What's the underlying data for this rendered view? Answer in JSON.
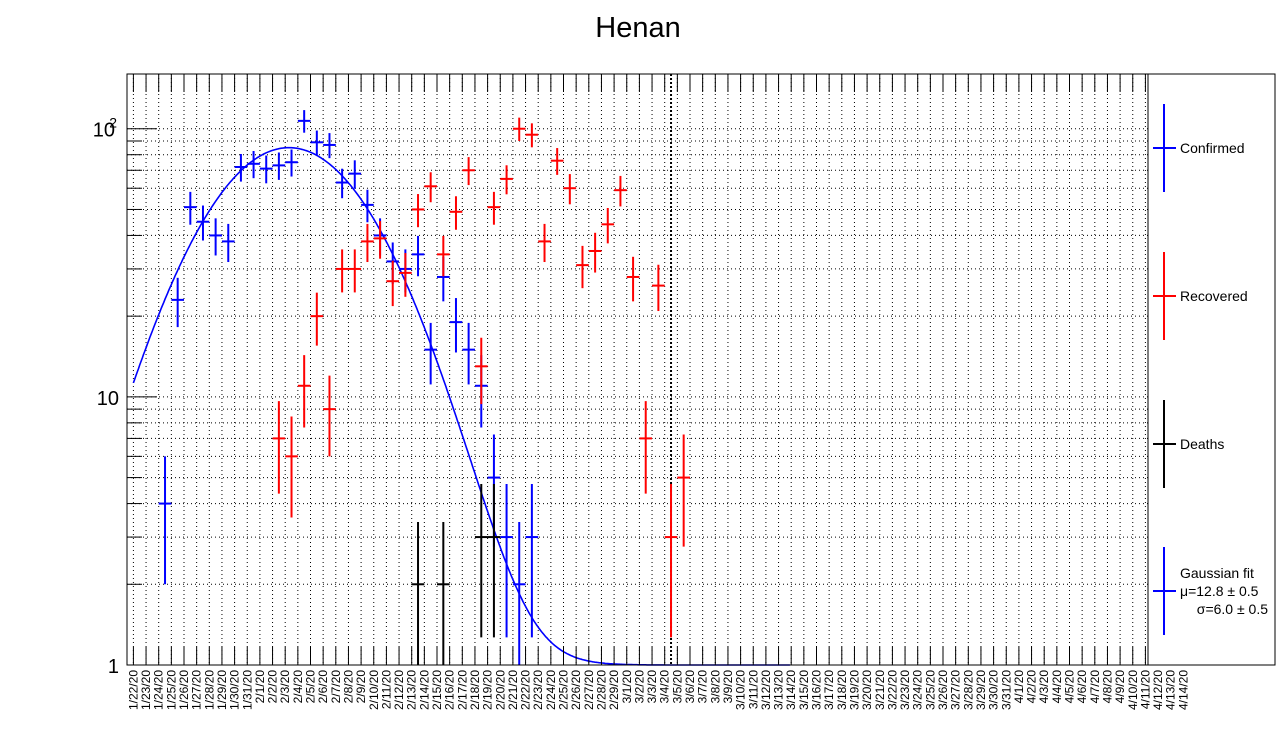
{
  "chart_data": {
    "type": "scatter",
    "title": "Henan",
    "yscale": "log",
    "ylim": [
      1,
      160
    ],
    "yticks": [
      {
        "value": 1,
        "label": "1"
      },
      {
        "value": 10,
        "label": "10"
      },
      {
        "value": 100,
        "label": "10",
        "sup": "2"
      }
    ],
    "grid": true,
    "x": [
      "1/22/20",
      "1/23/20",
      "1/24/20",
      "1/25/20",
      "1/26/20",
      "1/27/20",
      "1/28/20",
      "1/29/20",
      "1/30/20",
      "1/31/20",
      "2/1/20",
      "2/2/20",
      "2/3/20",
      "2/4/20",
      "2/5/20",
      "2/6/20",
      "2/7/20",
      "2/8/20",
      "2/9/20",
      "2/10/20",
      "2/11/20",
      "2/12/20",
      "2/13/20",
      "2/14/20",
      "2/15/20",
      "2/16/20",
      "2/17/20",
      "2/18/20",
      "2/19/20",
      "2/20/20",
      "2/21/20",
      "2/22/20",
      "2/23/20",
      "2/24/20",
      "2/25/20",
      "2/26/20",
      "2/27/20",
      "2/28/20",
      "2/29/20",
      "3/1/20",
      "3/2/20",
      "3/3/20",
      "3/4/20",
      "3/5/20",
      "3/6/20",
      "3/7/20",
      "3/8/20",
      "3/9/20",
      "3/10/20",
      "3/11/20",
      "3/12/20",
      "3/13/20",
      "3/14/20",
      "3/15/20",
      "3/16/20",
      "3/17/20",
      "3/18/20",
      "3/19/20",
      "3/20/20",
      "3/21/20",
      "3/22/20",
      "3/23/20",
      "3/24/20",
      "3/25/20",
      "3/26/20",
      "3/27/20",
      "3/28/20",
      "3/29/20",
      "3/30/20",
      "3/31/20",
      "4/1/20",
      "4/2/20",
      "4/3/20",
      "4/4/20",
      "4/5/20",
      "4/6/20",
      "4/7/20",
      "4/8/20",
      "4/9/20",
      "4/10/20",
      "4/11/20",
      "4/12/20",
      "4/13/20",
      "4/14/20"
    ],
    "vertical_marker": "3/4/20",
    "series": [
      {
        "name": "Confirmed",
        "color": "#0000ff",
        "marker": "errorbar",
        "points": [
          [
            2,
            4
          ],
          [
            3,
            23
          ],
          [
            4,
            51
          ],
          [
            5,
            45
          ],
          [
            6,
            40
          ],
          [
            7,
            38
          ],
          [
            8,
            72
          ],
          [
            9,
            74
          ],
          [
            10,
            71
          ],
          [
            11,
            73
          ],
          [
            12,
            75
          ],
          [
            13,
            107
          ],
          [
            14,
            89
          ],
          [
            15,
            87
          ],
          [
            16,
            63
          ],
          [
            17,
            68
          ],
          [
            18,
            52
          ],
          [
            19,
            40
          ],
          [
            20,
            32
          ],
          [
            21,
            30
          ],
          [
            22,
            34
          ],
          [
            23,
            15
          ],
          [
            24,
            28
          ],
          [
            25,
            19
          ],
          [
            26,
            15
          ],
          [
            27,
            11
          ],
          [
            28,
            5
          ],
          [
            29,
            3
          ],
          [
            30,
            2
          ],
          [
            31,
            3
          ]
        ]
      },
      {
        "name": "Recovered",
        "color": "#ff0000",
        "marker": "errorbar",
        "points": [
          [
            11,
            7
          ],
          [
            12,
            6
          ],
          [
            13,
            11
          ],
          [
            14,
            20
          ],
          [
            15,
            9
          ],
          [
            16,
            30
          ],
          [
            17,
            30
          ],
          [
            18,
            38
          ],
          [
            19,
            39
          ],
          [
            20,
            27
          ],
          [
            21,
            29
          ],
          [
            22,
            50
          ],
          [
            23,
            61
          ],
          [
            24,
            34
          ],
          [
            25,
            49
          ],
          [
            26,
            70
          ],
          [
            27,
            13
          ],
          [
            28,
            51
          ],
          [
            29,
            65
          ],
          [
            30,
            100
          ],
          [
            31,
            95
          ],
          [
            32,
            38
          ],
          [
            33,
            76
          ],
          [
            34,
            60
          ],
          [
            35,
            31
          ],
          [
            36,
            35
          ],
          [
            37,
            44
          ],
          [
            38,
            59
          ],
          [
            39,
            28
          ],
          [
            40,
            7
          ],
          [
            41,
            26
          ],
          [
            42,
            3
          ],
          [
            43,
            5
          ]
        ]
      },
      {
        "name": "Deaths",
        "color": "#000000",
        "marker": "errorbar",
        "points": [
          [
            22,
            2
          ],
          [
            24,
            2
          ],
          [
            27,
            3
          ],
          [
            28,
            3
          ]
        ]
      },
      {
        "name": "Gaussian fit",
        "color": "#0000ff",
        "type": "line",
        "model": "1 + A*exp(-0.5*((x-mu)/sigma)^2)",
        "A": 84,
        "mu": 12.8,
        "sigma": 6.0,
        "x_range": [
          0.5,
          52.5
        ]
      }
    ],
    "legend": {
      "position": "right",
      "entries": [
        {
          "label": "Confirmed",
          "color": "#0000ff"
        },
        {
          "label": "Recovered",
          "color": "#ff0000"
        },
        {
          "label": "Deaths",
          "color": "#000000"
        },
        {
          "label": "Gaussian fit",
          "color": "#0000ff",
          "lines": [
            "μ=12.8 ± 0.5",
            "σ=6.0 ± 0.5"
          ]
        }
      ]
    }
  }
}
